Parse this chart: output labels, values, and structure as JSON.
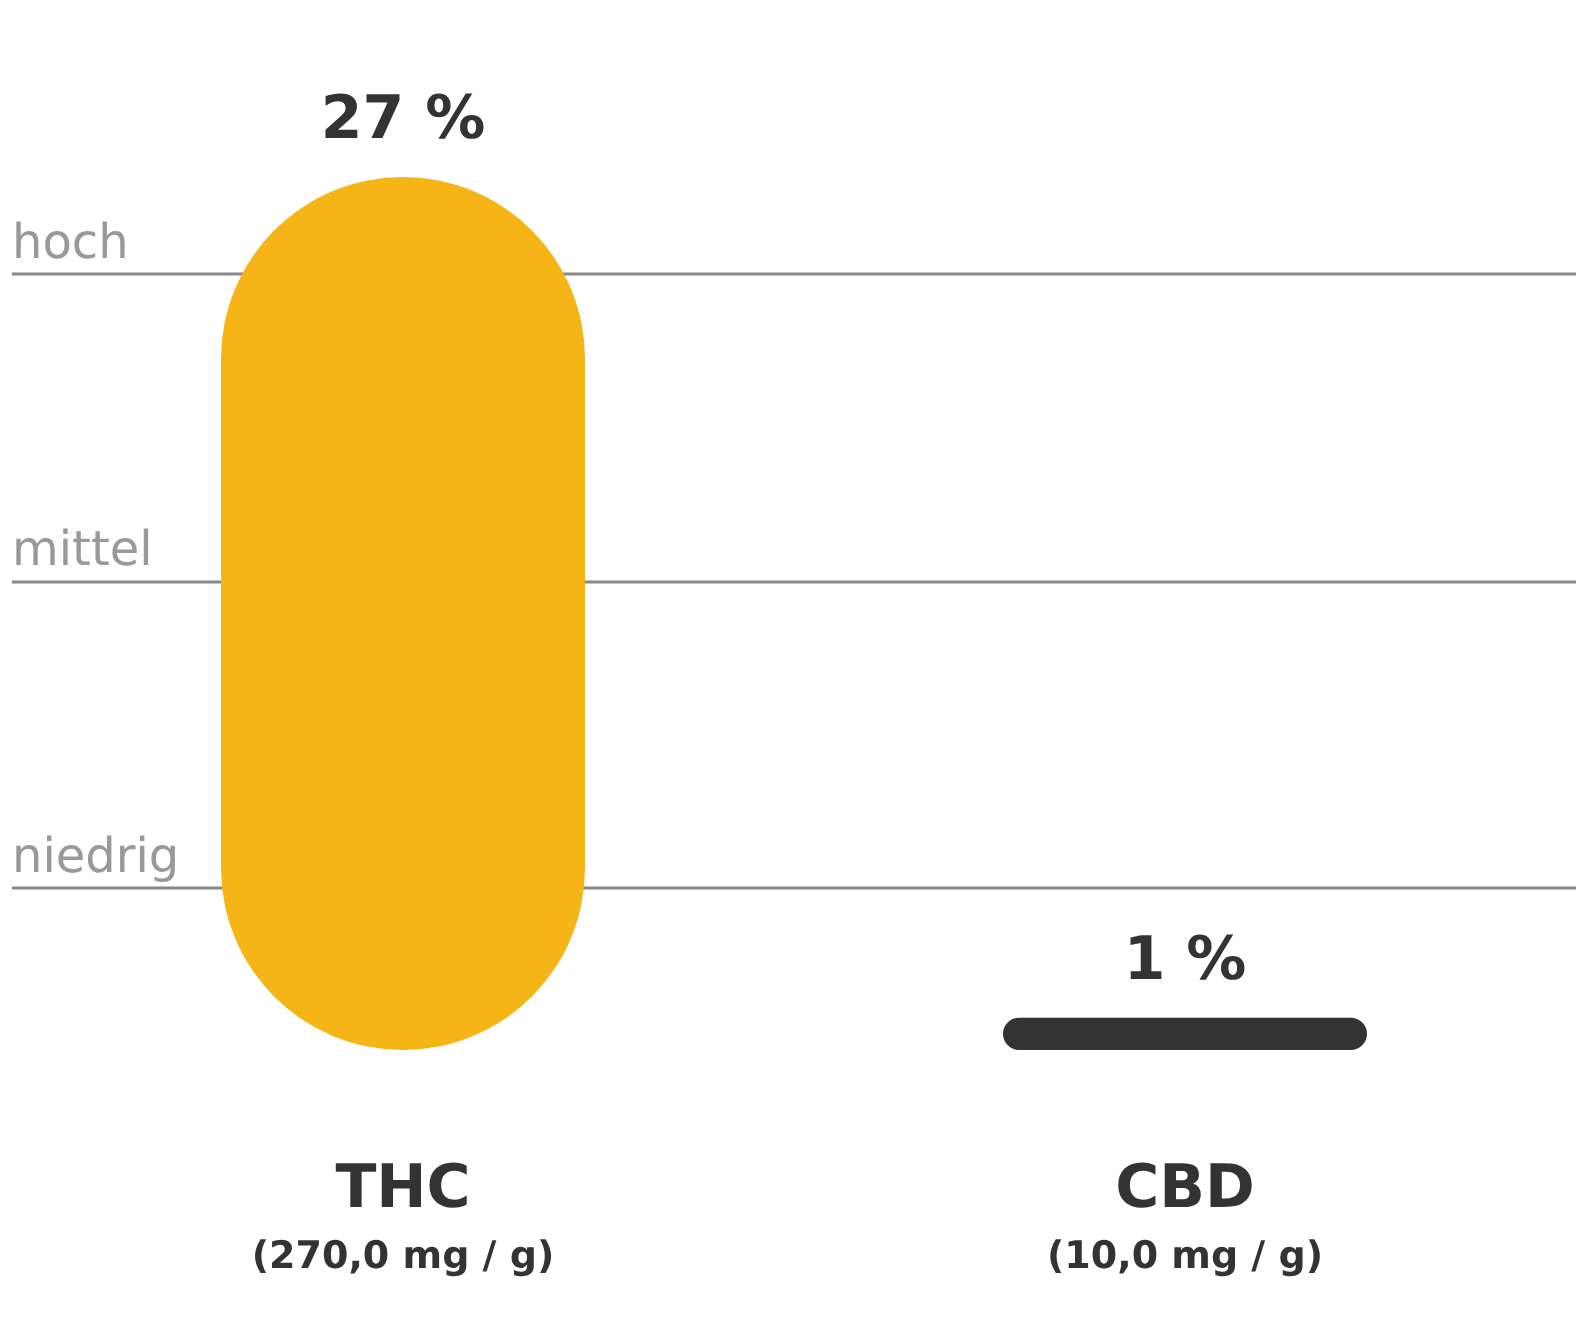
{
  "chart_data": {
    "type": "bar",
    "categories": [
      "THC (270,0 mg / g)",
      "CBD (10,0 mg / g)"
    ],
    "values": [
      27,
      1
    ],
    "colors": [
      "#f6b517",
      "#333333"
    ],
    "value_labels": [
      "27 %",
      "1 %"
    ],
    "ref_lines": [
      {
        "axis": "y",
        "value": 5,
        "label": "niedrig",
        "color": "#888888"
      },
      {
        "axis": "y",
        "value": 14.5,
        "label": "mittel",
        "color": "#888888"
      },
      {
        "axis": "y",
        "value": 24,
        "label": "hoch",
        "color": "#888888"
      }
    ]
  }
}
